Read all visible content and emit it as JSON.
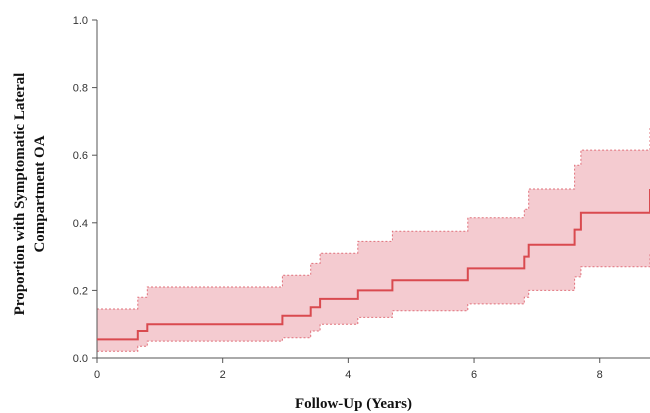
{
  "chart_data": {
    "type": "line",
    "title": "",
    "xlabel": "Follow-Up (Years)",
    "ylabel_lines": [
      "Proportion with Symptomatic Lateral",
      "Compartment OA"
    ],
    "xlim": [
      0,
      8.8
    ],
    "ylim": [
      0,
      1.0
    ],
    "x_ticks": [
      0,
      2,
      4,
      6,
      8
    ],
    "y_ticks": [
      0.0,
      0.2,
      0.4,
      0.6,
      0.8,
      1.0
    ],
    "x_tick_labels": [
      "0",
      "2",
      "4",
      "6",
      "8"
    ],
    "y_tick_labels": [
      "0.0",
      "0.2",
      "0.4",
      "0.6",
      "0.8",
      "1.0"
    ],
    "grid": false,
    "line_color": "#d94a4f",
    "band_fill_color": "#f4cbd0",
    "band_edge_color": "#e0707a",
    "series": [
      {
        "x": [
          0,
          0.65,
          0.8,
          2.95,
          3.4,
          3.55,
          4.15,
          4.7,
          5.9,
          6.8,
          6.87,
          7.6,
          7.7,
          8.8
        ],
        "y": [
          0.055,
          0.08,
          0.1,
          0.125,
          0.15,
          0.175,
          0.2,
          0.23,
          0.265,
          0.3,
          0.335,
          0.38,
          0.43,
          0.5
        ],
        "lower": [
          0.02,
          0.035,
          0.05,
          0.06,
          0.08,
          0.1,
          0.12,
          0.14,
          0.16,
          0.18,
          0.2,
          0.24,
          0.27,
          0.31
        ],
        "upper": [
          0.145,
          0.18,
          0.21,
          0.245,
          0.28,
          0.31,
          0.345,
          0.375,
          0.415,
          0.44,
          0.5,
          0.57,
          0.615,
          0.685
        ]
      }
    ]
  }
}
